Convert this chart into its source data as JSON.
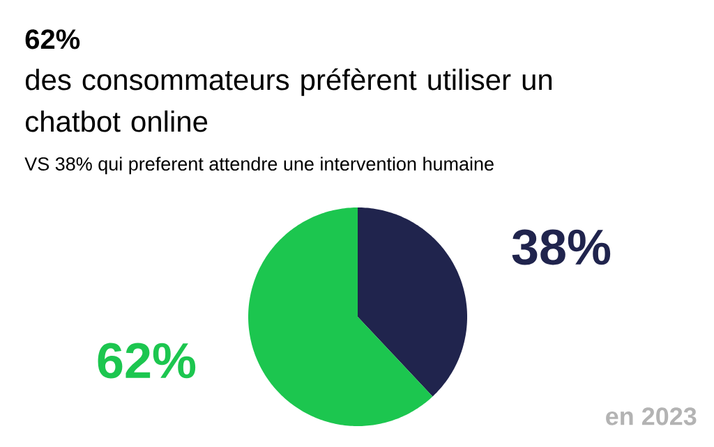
{
  "chart_data": {
    "type": "pie",
    "title": "62%",
    "subtitle": "des consommateurs préfèrent utiliser un chatbot online",
    "annotations": [
      "VS 38% qui preferent attendre une intervention humaine",
      "en 2023"
    ],
    "categories": [
      null,
      null
    ],
    "values": [
      38,
      62
    ],
    "colors": [
      "#20244d",
      "#1cc64f"
    ],
    "value_labels": [
      "38%",
      "62%"
    ]
  }
}
